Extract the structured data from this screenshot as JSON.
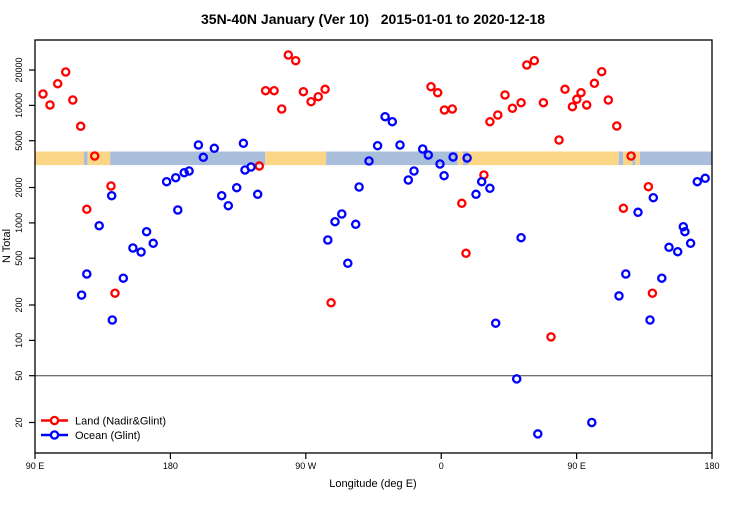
{
  "title": "35N-40N January (Ver 10)   2015-01-01 to 2020-12-18",
  "colors": {
    "land_marker": "#ff0000",
    "ocean_marker": "#0000ff",
    "band_land": "#fbd687",
    "band_ocean": "#a8bedb",
    "ref_line": "#444444",
    "axis": "#000000"
  },
  "chart_data": {
    "type": "scatter",
    "title": "35N-40N January (Ver 10)   2015-01-01 to 2020-12-18",
    "xlabel": "Longitude (deg E)",
    "ylabel": "N Total",
    "x_range_deg_east": [
      90,
      540
    ],
    "y_scale": "log10",
    "y_range": [
      13,
      32000
    ],
    "x_ticks": [
      {
        "value": 90,
        "label": "90 E"
      },
      {
        "value": 180,
        "label": "180"
      },
      {
        "value": 270,
        "label": "90 W"
      },
      {
        "value": 360,
        "label": "0"
      },
      {
        "value": 450,
        "label": "90 E"
      },
      {
        "value": 540,
        "label": "180"
      }
    ],
    "y_ticks": [
      {
        "value": 20,
        "label": "20"
      },
      {
        "value": 50,
        "label": "50"
      },
      {
        "value": 100,
        "label": "100"
      },
      {
        "value": 200,
        "label": "200"
      },
      {
        "value": 500,
        "label": "500"
      },
      {
        "value": 1000,
        "label": "1000"
      },
      {
        "value": 2000,
        "label": "2000"
      },
      {
        "value": 5000,
        "label": "5000"
      },
      {
        "value": 10000,
        "label": "10000"
      },
      {
        "value": 20000,
        "label": "20000"
      }
    ],
    "ref_line_n": 50,
    "surface_band": {
      "n_bottom": 3100,
      "n_top": 4050,
      "segments": [
        {
          "surface": "land",
          "from": 90,
          "to": 122.5
        },
        {
          "surface": "ocean",
          "from": 122.5,
          "to": 125
        },
        {
          "surface": "land",
          "from": 125,
          "to": 140
        },
        {
          "surface": "ocean",
          "from": 140,
          "to": 243
        },
        {
          "surface": "land",
          "from": 243,
          "to": 283.5
        },
        {
          "surface": "ocean",
          "from": 283.5,
          "to": 371
        },
        {
          "surface": "land",
          "from": 371,
          "to": 374.5
        },
        {
          "surface": "ocean",
          "from": 374.5,
          "to": 378
        },
        {
          "surface": "land",
          "from": 378,
          "to": 478
        },
        {
          "surface": "ocean",
          "from": 478,
          "to": 481
        },
        {
          "surface": "land",
          "from": 481,
          "to": 487
        },
        {
          "surface": "ocean",
          "from": 487,
          "to": 489
        },
        {
          "surface": "land",
          "from": 489,
          "to": 492
        },
        {
          "surface": "ocean",
          "from": 492,
          "to": 540
        }
      ]
    },
    "series": [
      {
        "name": "Land (Nadir&Glint)",
        "color": "#ff0000",
        "points": [
          [
            95.3,
            12490
          ],
          [
            100,
            10070
          ],
          [
            105.1,
            15290
          ],
          [
            110.4,
            19230
          ],
          [
            115.1,
            11110
          ],
          [
            120.4,
            6636
          ],
          [
            129.7,
            3708
          ],
          [
            124.4,
            1305
          ],
          [
            140.5,
            2060
          ],
          [
            143.2,
            252
          ],
          [
            239.1,
            3048
          ],
          [
            243.3,
            13330
          ],
          [
            248.9,
            13330
          ],
          [
            254,
            9313
          ],
          [
            258.4,
            26840
          ],
          [
            263.3,
            23990
          ],
          [
            268.4,
            13070
          ],
          [
            273.5,
            10740
          ],
          [
            278.3,
            11850
          ],
          [
            282.8,
            13700
          ],
          [
            286.8,
            209
          ],
          [
            353.2,
            14410
          ],
          [
            357.7,
            12810
          ],
          [
            362.1,
            9131
          ],
          [
            367.4,
            9313
          ],
          [
            373.7,
            1468
          ],
          [
            376.5,
            551
          ],
          [
            388.4,
            2556
          ],
          [
            392.4,
            7261
          ],
          [
            397.6,
            8280
          ],
          [
            402.4,
            12250
          ],
          [
            407.3,
            9441
          ],
          [
            413.1,
            10530
          ],
          [
            416.9,
            22060
          ],
          [
            421.9,
            23990
          ],
          [
            427.9,
            10530
          ],
          [
            433,
            107
          ],
          [
            438.3,
            5074
          ],
          [
            442.3,
            13700
          ],
          [
            447.2,
            9741
          ],
          [
            450.1,
            11260
          ],
          [
            452.9,
            12810
          ],
          [
            456.7,
            10070
          ],
          [
            461.8,
            15410
          ],
          [
            466.7,
            19340
          ],
          [
            471.1,
            11110
          ],
          [
            476.7,
            6674
          ],
          [
            481.1,
            1330
          ],
          [
            486.2,
            3708
          ],
          [
            497.7,
            2032
          ],
          [
            500.4,
            252
          ]
        ]
      },
      {
        "name": "Ocean (Glint)",
        "color": "#0000ff",
        "points": [
          [
            121,
            243
          ],
          [
            124.4,
            367
          ],
          [
            132.7,
            946
          ],
          [
            141,
            1703
          ],
          [
            141.4,
            149
          ],
          [
            148.7,
            338
          ],
          [
            155.1,
            611
          ],
          [
            160.5,
            565
          ],
          [
            164.2,
            841
          ],
          [
            168.6,
            670
          ],
          [
            177.5,
            2241
          ],
          [
            183.5,
            2424
          ],
          [
            184.9,
            1287
          ],
          [
            189.2,
            2673
          ],
          [
            192.4,
            2763
          ],
          [
            198.6,
            4600
          ],
          [
            201.9,
            3614
          ],
          [
            209.2,
            4312
          ],
          [
            214.1,
            1703
          ],
          [
            218.5,
            1400
          ],
          [
            224.1,
            1992
          ],
          [
            228.5,
            4755
          ],
          [
            229.6,
            2819
          ],
          [
            233.6,
            2990
          ],
          [
            238,
            1750
          ],
          [
            284.6,
            715
          ],
          [
            289.4,
            1023
          ],
          [
            293.9,
            1190
          ],
          [
            297.9,
            453
          ],
          [
            303.2,
            972
          ],
          [
            305.4,
            2020
          ],
          [
            312,
            3361
          ],
          [
            317.7,
            4537
          ],
          [
            322.7,
            8010
          ],
          [
            327.5,
            7261
          ],
          [
            332.6,
            4600
          ],
          [
            338.1,
            2317
          ],
          [
            341.9,
            2763
          ],
          [
            347.7,
            4253
          ],
          [
            351.4,
            3781
          ],
          [
            359.2,
            3170
          ],
          [
            361.9,
            2520
          ],
          [
            367.9,
            3636
          ],
          [
            377.2,
            3565
          ],
          [
            383.1,
            1750
          ],
          [
            386.9,
            2241
          ],
          [
            392.4,
            1969
          ],
          [
            396.2,
            140
          ],
          [
            410.2,
            47
          ],
          [
            413.1,
            748
          ],
          [
            424.2,
            16
          ],
          [
            460.1,
            20
          ],
          [
            478.2,
            239
          ],
          [
            482.7,
            367
          ],
          [
            490.8,
            1230
          ],
          [
            498.8,
            149
          ],
          [
            501,
            1638
          ],
          [
            506.6,
            338
          ],
          [
            511.4,
            620
          ],
          [
            517.2,
            568
          ],
          [
            520.9,
            928
          ],
          [
            522,
            841
          ],
          [
            525.8,
            670
          ],
          [
            530.2,
            2241
          ],
          [
            535.5,
            2395
          ]
        ]
      }
    ],
    "legend_position": "bottom-left",
    "grid": false
  }
}
